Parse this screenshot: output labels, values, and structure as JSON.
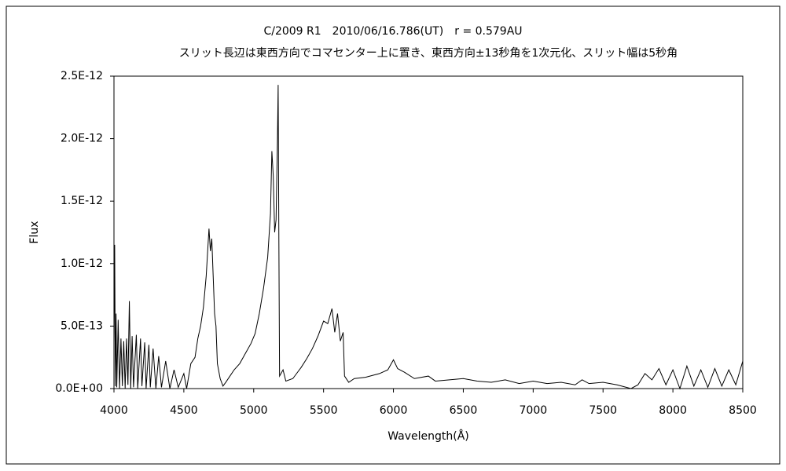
{
  "chart_data": {
    "type": "line",
    "title": "C/2009 R1　2010/06/16.786(UT)　r = 0.579AU",
    "subtitle": "スリット長辺は東西方向でコマセンター上に置き、東西方向±13秒角を1次元化、スリット幅は5秒角",
    "x_label": "Wavelength(Å)",
    "y_label": "Flux",
    "xlim": [
      4000,
      8500
    ],
    "xticks": [
      4000,
      4500,
      5000,
      5500,
      6000,
      6500,
      7000,
      7500,
      8000,
      8500
    ],
    "ylim": [
      0,
      2.5e-12
    ],
    "yticks": [
      {
        "value": 0,
        "label": "0.0E+00"
      },
      {
        "value": 5e-13,
        "label": "5.0E-13"
      },
      {
        "value": 1e-12,
        "label": "1.0E-12"
      },
      {
        "value": 1.5e-12,
        "label": "1.5E-12"
      },
      {
        "value": 2e-12,
        "label": "2.0E-12"
      },
      {
        "value": 2.5e-12,
        "label": "2.5E-12"
      }
    ],
    "grid": false,
    "series": [
      {
        "color": "#000000",
        "x": [
          4000,
          4005,
          4010,
          4015,
          4020,
          4030,
          4040,
          4050,
          4060,
          4070,
          4080,
          4090,
          4100,
          4110,
          4120,
          4130,
          4140,
          4160,
          4170,
          4190,
          4200,
          4220,
          4230,
          4250,
          4260,
          4280,
          4300,
          4320,
          4340,
          4370,
          4400,
          4430,
          4460,
          4500,
          4520,
          4550,
          4580,
          4600,
          4620,
          4640,
          4660,
          4680,
          4690,
          4700,
          4710,
          4720,
          4730,
          4740,
          4760,
          4780,
          4800,
          4830,
          4860,
          4900,
          4940,
          4980,
          5010,
          5040,
          5070,
          5100,
          5120,
          5130,
          5140,
          5150,
          5160,
          5170,
          5175,
          5180,
          5185,
          5210,
          5230,
          5280,
          5300,
          5340,
          5380,
          5420,
          5460,
          5500,
          5530,
          5560,
          5580,
          5600,
          5620,
          5640,
          5650,
          5680,
          5720,
          5800,
          5900,
          5960,
          6000,
          6030,
          6080,
          6150,
          6250,
          6300,
          6400,
          6500,
          6600,
          6700,
          6800,
          6900,
          7000,
          7100,
          7200,
          7300,
          7350,
          7400,
          7500,
          7600,
          7700,
          7750,
          7800,
          7850,
          7900,
          7950,
          8000,
          8050,
          8100,
          8150,
          8200,
          8250,
          8300,
          8350,
          8400,
          8450,
          8500
        ],
        "values": [
          3.5e-13,
          1.15e-12,
          2e-14,
          6e-13,
          1e-14,
          5.5e-13,
          0,
          4e-13,
          2e-14,
          3.8e-13,
          0,
          4e-13,
          3e-14,
          7e-13,
          0,
          4.2e-13,
          1e-14,
          4.3e-13,
          0,
          4e-13,
          2e-14,
          3.7e-13,
          0,
          3.5e-13,
          1e-14,
          3.2e-13,
          0,
          2.6e-13,
          1e-14,
          2.2e-13,
          0,
          1.5e-13,
          1e-14,
          1.2e-13,
          0,
          2e-13,
          2.5e-13,
          4e-13,
          5e-13,
          6.5e-13,
          9e-13,
          1.28e-12,
          1.1e-12,
          1.2e-12,
          9e-13,
          6e-13,
          5e-13,
          2e-13,
          8e-14,
          2e-14,
          5e-14,
          1e-13,
          1.5e-13,
          2e-13,
          2.8e-13,
          3.6e-13,
          4.4e-13,
          6e-13,
          8e-13,
          1.05e-12,
          1.4e-12,
          1.9e-12,
          1.7e-12,
          1.25e-12,
          1.35e-12,
          2e-12,
          2.43e-12,
          1.2e-12,
          1e-13,
          1.5e-13,
          6e-14,
          8e-14,
          1.1e-13,
          1.7e-13,
          2.4e-13,
          3.2e-13,
          4.2e-13,
          5.4e-13,
          5.2e-13,
          6.4e-13,
          4.5e-13,
          6e-13,
          3.8e-13,
          4.5e-13,
          1e-13,
          5e-14,
          8e-14,
          9e-14,
          1.2e-13,
          1.5e-13,
          2.3e-13,
          1.6e-13,
          1.3e-13,
          8e-14,
          1e-13,
          6e-14,
          7e-14,
          8e-14,
          6e-14,
          5e-14,
          7e-14,
          4e-14,
          6e-14,
          4e-14,
          5e-14,
          3e-14,
          7e-14,
          4e-14,
          5e-14,
          3e-14,
          0,
          3e-14,
          1.2e-13,
          7e-14,
          1.6e-13,
          3e-14,
          1.5e-13,
          0,
          1.8e-13,
          2e-14,
          1.5e-13,
          1e-14,
          1.6e-13,
          2e-14,
          1.5e-13,
          3e-14,
          2.2e-13
        ]
      }
    ]
  }
}
